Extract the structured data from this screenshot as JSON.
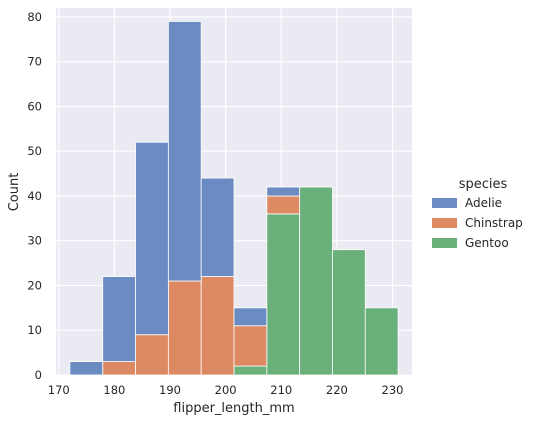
{
  "chart_data": {
    "type": "bar",
    "subtype": "stacked-histogram",
    "xlabel": "flipper_length_mm",
    "ylabel": "Count",
    "xlim": [
      169.5,
      233.5
    ],
    "ylim": [
      0,
      82
    ],
    "xticks": [
      170,
      180,
      190,
      200,
      210,
      220,
      230
    ],
    "yticks": [
      0,
      10,
      20,
      30,
      40,
      50,
      60,
      70,
      80
    ],
    "grid": true,
    "background": "#eaeaf2",
    "legend": {
      "title": "species",
      "position": "right"
    },
    "bins": [
      [
        172.0,
        177.9
      ],
      [
        177.9,
        183.8
      ],
      [
        183.8,
        189.7
      ],
      [
        189.7,
        195.6
      ],
      [
        195.6,
        201.5
      ],
      [
        201.5,
        207.4
      ],
      [
        207.4,
        213.3
      ],
      [
        213.3,
        219.2
      ],
      [
        219.2,
        225.1
      ],
      [
        225.1,
        231.0
      ]
    ],
    "series": [
      {
        "name": "Gentoo",
        "color": "#6ab07a",
        "values": [
          0,
          0,
          0,
          0,
          0,
          2,
          36,
          42,
          28,
          15
        ]
      },
      {
        "name": "Chinstrap",
        "color": "#dd8a63",
        "values": [
          0,
          3,
          9,
          21,
          22,
          9,
          4,
          0,
          0,
          0
        ]
      },
      {
        "name": "Adelie",
        "color": "#6b8bc3",
        "values": [
          3,
          19,
          43,
          58,
          22,
          4,
          2,
          0,
          0,
          0
        ]
      }
    ],
    "legend_order": [
      "Adelie",
      "Chinstrap",
      "Gentoo"
    ]
  }
}
